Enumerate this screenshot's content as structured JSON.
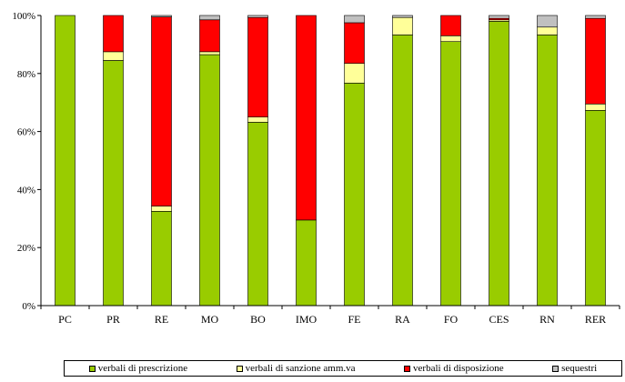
{
  "chart_data": {
    "type": "bar",
    "stacked": true,
    "normalized": true,
    "categories": [
      "PC",
      "PR",
      "RE",
      "MO",
      "BO",
      "IMO",
      "FE",
      "RA",
      "FO",
      "CES",
      "RN",
      "RER"
    ],
    "series": [
      {
        "name": "verbali di prescrizione",
        "color": "#99CC00",
        "values": [
          100.0,
          84.5,
          32.5,
          86.5,
          63.2,
          29.5,
          76.7,
          93.3,
          91.0,
          98.0,
          93.3,
          67.3
        ]
      },
      {
        "name": "verbali di sanzione amm.va",
        "color": "#FFFF99",
        "values": [
          0.0,
          3.0,
          1.8,
          1.0,
          1.8,
          0.0,
          6.8,
          6.0,
          2.0,
          0.5,
          2.7,
          2.2
        ]
      },
      {
        "name": "verbali di disposizione",
        "color": "#FF0000",
        "values": [
          0.0,
          12.5,
          65.2,
          11.0,
          34.3,
          70.5,
          14.0,
          0.0,
          7.0,
          0.5,
          0.0,
          29.5
        ]
      },
      {
        "name": "sequestri",
        "color": "#C0C0C0",
        "values": [
          0.0,
          0.0,
          0.5,
          1.5,
          0.7,
          0.0,
          2.5,
          0.7,
          0.0,
          1.0,
          4.0,
          1.0
        ]
      }
    ],
    "y_ticks": [
      "0%",
      "20%",
      "40%",
      "60%",
      "80%",
      "100%"
    ],
    "y_tick_values": [
      0,
      20,
      40,
      60,
      80,
      100
    ],
    "ylim": [
      0,
      100
    ],
    "title": "",
    "xlabel": "",
    "ylabel": "",
    "grid": false,
    "legend_position": "bottom"
  }
}
